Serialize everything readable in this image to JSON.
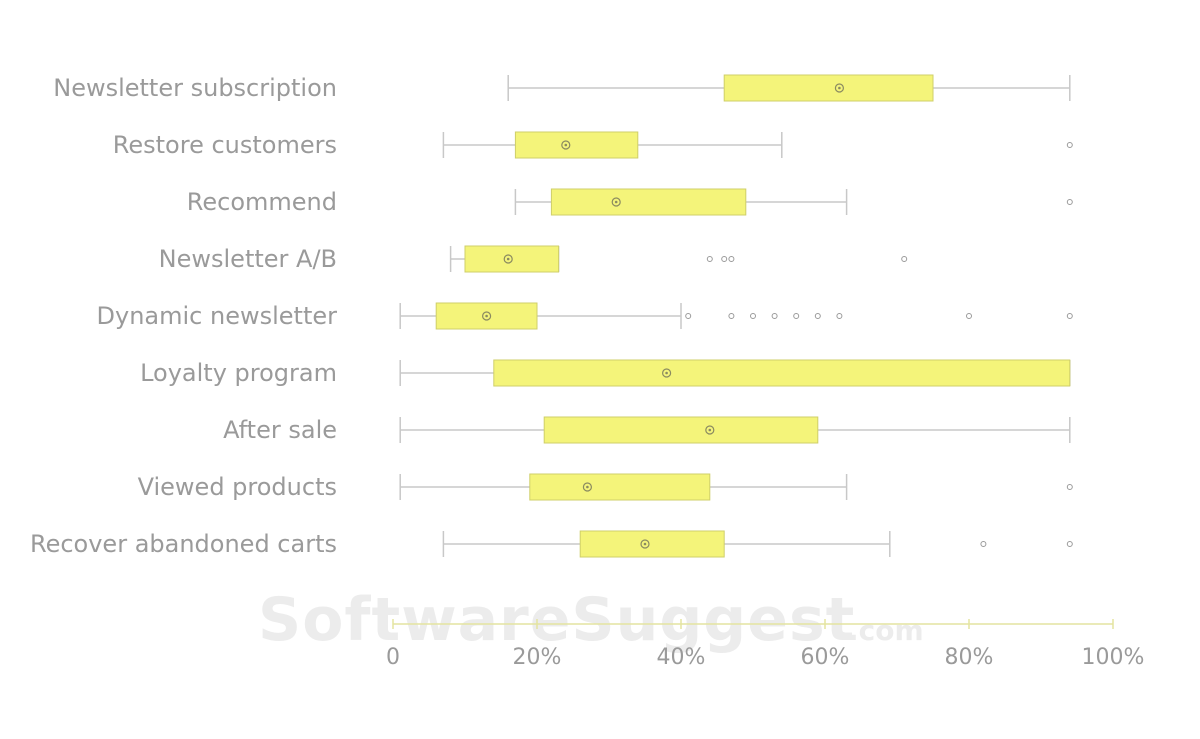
{
  "watermark": {
    "main": "SoftwareSuggest",
    "suffix": ".com"
  },
  "colors": {
    "box_fill": "#f4f47a",
    "box_stroke": "#cfcf6a",
    "whisker": "#c8c8c8",
    "label": "#9a9a9a",
    "axis": "#e4e4a0"
  },
  "chart_data": {
    "type": "boxplot",
    "title": "",
    "xlabel": "",
    "ylabel": "",
    "xlim": [
      0,
      100
    ],
    "x_ticks": [
      0,
      20,
      40,
      60,
      80,
      100
    ],
    "x_tick_labels": [
      "0",
      "20%",
      "40%",
      "60%",
      "80%",
      "100%"
    ],
    "categories": [
      "Newsletter subscription",
      "Restore customers",
      "Recommend",
      "Newsletter A/B",
      "Dynamic newsletter",
      "Loyalty program",
      "After sale",
      "Viewed products",
      "Recover abandoned carts"
    ],
    "boxes": [
      {
        "name": "Newsletter subscription",
        "whisker_low": 16,
        "q1": 46,
        "median": 46,
        "q3": 75,
        "whisker_high": 94,
        "mean": 62,
        "outliers": []
      },
      {
        "name": "Restore customers",
        "whisker_low": 7,
        "q1": 17,
        "median": 17,
        "q3": 34,
        "whisker_high": 54,
        "mean": 24,
        "outliers": [
          94
        ]
      },
      {
        "name": "Recommend",
        "whisker_low": 17,
        "q1": 22,
        "median": 22,
        "q3": 49,
        "whisker_high": 63,
        "mean": 31,
        "outliers": [
          94
        ]
      },
      {
        "name": "Newsletter A/B",
        "whisker_low": 8,
        "q1": 10,
        "median": 10,
        "q3": 23,
        "whisker_high": 23,
        "mean": 16,
        "outliers": [
          44,
          46,
          47,
          71
        ]
      },
      {
        "name": "Dynamic newsletter",
        "whisker_low": 1,
        "q1": 6,
        "median": 6,
        "q3": 20,
        "whisker_high": 40,
        "mean": 13,
        "outliers": [
          41,
          47,
          50,
          53,
          56,
          59,
          62,
          80,
          94
        ]
      },
      {
        "name": "Loyalty program",
        "whisker_low": 1,
        "q1": 14,
        "median": 14,
        "q3": 94,
        "whisker_high": 94,
        "mean": 38,
        "outliers": []
      },
      {
        "name": "After sale",
        "whisker_low": 1,
        "q1": 21,
        "median": 21,
        "q3": 59,
        "whisker_high": 94,
        "mean": 44,
        "outliers": []
      },
      {
        "name": "Viewed products",
        "whisker_low": 1,
        "q1": 19,
        "median": 19,
        "q3": 44,
        "whisker_high": 63,
        "mean": 27,
        "outliers": [
          94
        ]
      },
      {
        "name": "Recover abandoned carts",
        "whisker_low": 7,
        "q1": 26,
        "median": 26,
        "q3": 46,
        "whisker_high": 69,
        "mean": 35,
        "outliers": [
          82,
          94
        ]
      }
    ]
  }
}
